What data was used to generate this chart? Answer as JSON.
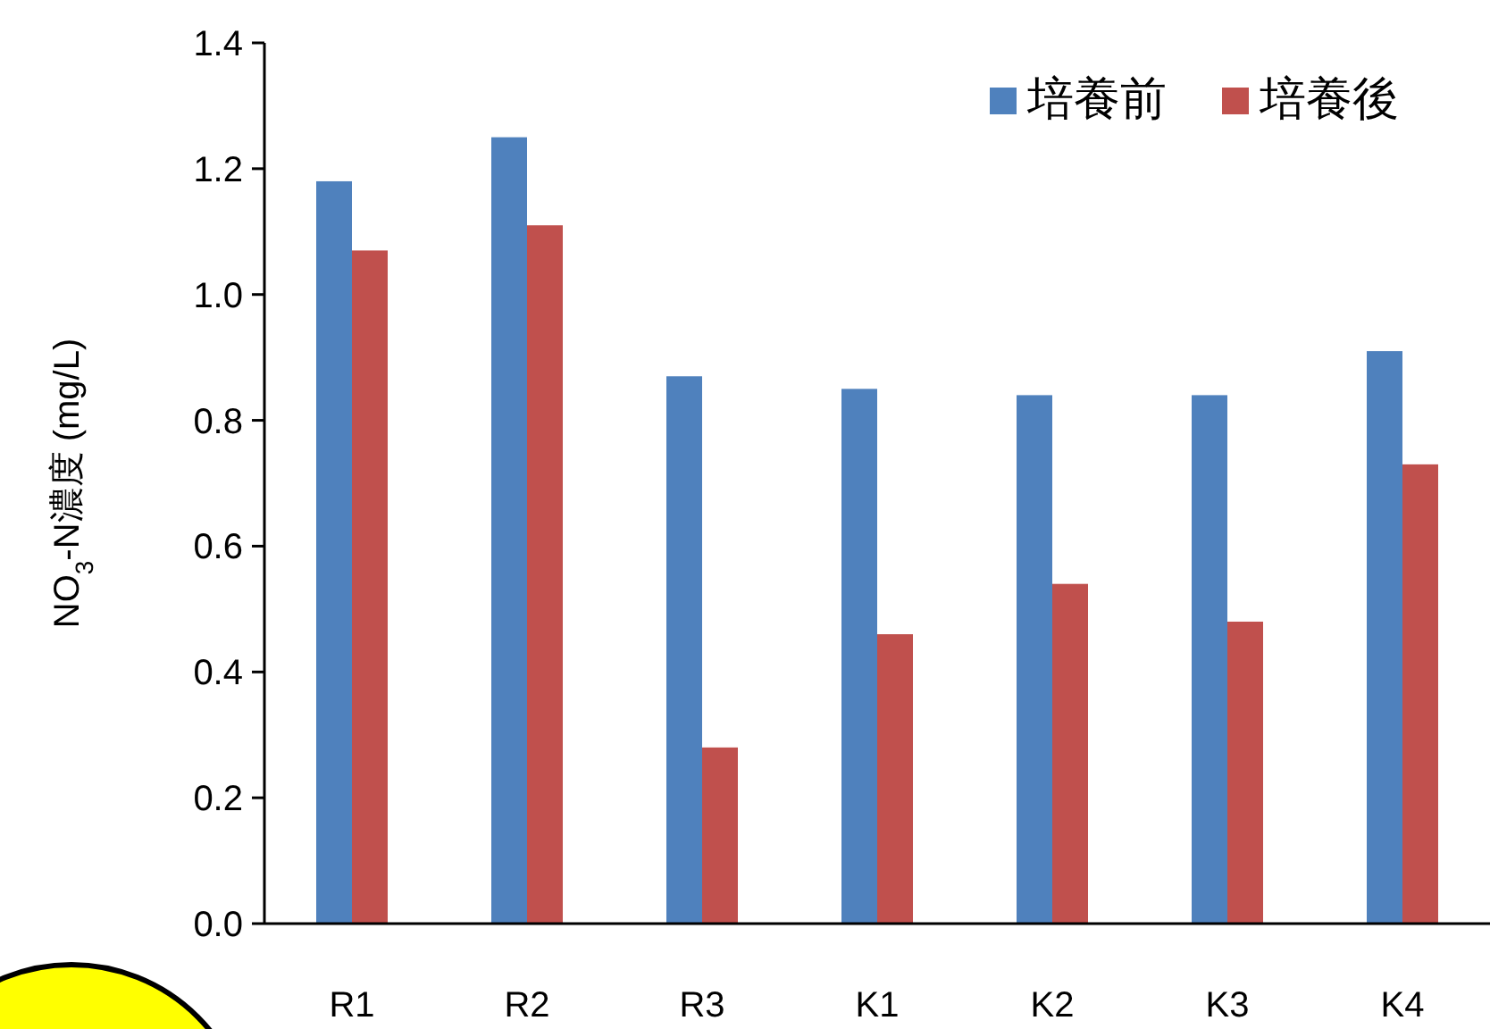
{
  "chart_data": {
    "type": "bar",
    "ylabel": "NO$_{3}$-N濃度 (mg/L)",
    "categories": [
      "R1",
      "R2",
      "R3",
      "K1",
      "K2",
      "K3",
      "K4"
    ],
    "series": [
      {
        "name": "培養前",
        "color": "#4f81bd",
        "values": [
          1.18,
          1.25,
          0.87,
          0.85,
          0.84,
          0.84,
          0.91
        ]
      },
      {
        "name": "培養後",
        "color": "#c0504d",
        "values": [
          1.07,
          1.11,
          0.28,
          0.46,
          0.54,
          0.48,
          0.73
        ]
      }
    ],
    "ylim": [
      0,
      1.4
    ],
    "yticks": [
      {
        "value": 0,
        "label": "0.0"
      },
      {
        "value": 0.2,
        "label": "0.2"
      },
      {
        "value": 0.4,
        "label": "0.4"
      },
      {
        "value": 0.6,
        "label": "0.6"
      },
      {
        "value": 0.8,
        "label": "0.8"
      },
      {
        "value": 1.0,
        "label": "1.0"
      },
      {
        "value": 1.2,
        "label": "1.2"
      },
      {
        "value": 1.4,
        "label": "1.4"
      }
    ],
    "grid": false,
    "legend": "top right"
  }
}
